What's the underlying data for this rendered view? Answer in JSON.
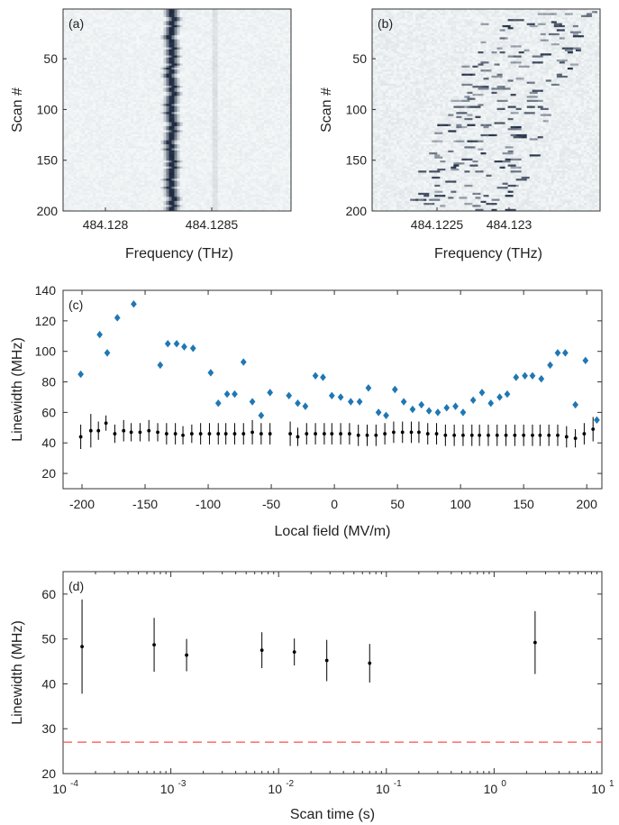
{
  "chart_data": [
    {
      "panel": "(a)",
      "type": "heatmap",
      "xlabel": "Frequency (THz)",
      "ylabel": "Scan #",
      "xticks": [
        "484.128",
        "484.1285"
      ],
      "yticks": [
        50,
        100,
        150,
        200
      ],
      "ylim": [
        1,
        200
      ],
      "colors": {
        "low": "#f4f8f9",
        "high": "#1d2a40"
      }
    },
    {
      "panel": "(b)",
      "type": "heatmap",
      "xlabel": "Frequency (THz)",
      "ylabel": "Scan #",
      "xticks": [
        "484.1225",
        "484.123"
      ],
      "yticks": [
        50,
        100,
        150,
        200
      ],
      "ylim": [
        1,
        200
      ],
      "colors": {
        "low": "#f4f8f9",
        "high": "#1d2a40"
      }
    },
    {
      "panel": "(c)",
      "type": "scatter",
      "xlabel": "Local field (MV/m)",
      "ylabel": "Linewidth (MHz)",
      "xlim": [
        -215,
        212
      ],
      "ylim": [
        10,
        140
      ],
      "xticks": [
        -200,
        -150,
        -100,
        -50,
        0,
        50,
        100,
        150,
        200
      ],
      "yticks": [
        20,
        40,
        60,
        80,
        100,
        120,
        140
      ],
      "series": [
        {
          "marker": "diamond",
          "color": "#1f77b4",
          "points": [
            [
              -201,
              85
            ],
            [
              -186,
              111
            ],
            [
              -180,
              99
            ],
            [
              -172,
              122
            ],
            [
              -159,
              131
            ],
            [
              -138,
              91
            ],
            [
              -132,
              105
            ],
            [
              -125,
              105
            ],
            [
              -119,
              103
            ],
            [
              -112,
              102
            ],
            [
              -98,
              86
            ],
            [
              -92,
              66
            ],
            [
              -85,
              72
            ],
            [
              -79,
              72
            ],
            [
              -72,
              93
            ],
            [
              -65,
              67
            ],
            [
              -58,
              58
            ],
            [
              -51,
              73
            ],
            [
              -36,
              71
            ],
            [
              -29,
              66
            ],
            [
              -23,
              64
            ],
            [
              -15,
              84
            ],
            [
              -9,
              83
            ],
            [
              -2,
              71
            ],
            [
              5,
              70
            ],
            [
              13,
              67
            ],
            [
              20,
              67
            ],
            [
              27,
              76
            ],
            [
              35,
              60
            ],
            [
              41,
              58
            ],
            [
              48,
              75
            ],
            [
              55,
              67
            ],
            [
              62,
              62
            ],
            [
              69,
              65
            ],
            [
              75,
              61
            ],
            [
              82,
              60
            ],
            [
              89,
              63
            ],
            [
              96,
              64
            ],
            [
              102,
              60
            ],
            [
              110,
              68
            ],
            [
              117,
              73
            ],
            [
              124,
              66
            ],
            [
              131,
              70
            ],
            [
              137,
              72
            ],
            [
              144,
              83
            ],
            [
              151,
              84
            ],
            [
              157,
              84
            ],
            [
              164,
              82
            ],
            [
              171,
              91
            ],
            [
              177,
              99
            ],
            [
              183,
              99
            ],
            [
              191,
              65
            ],
            [
              199,
              94
            ],
            [
              208,
              55
            ]
          ]
        },
        {
          "marker": "dot",
          "color": "#000000",
          "points": [
            [
              -201,
              44,
              8
            ],
            [
              -193,
              48,
              11
            ],
            [
              -187,
              48,
              6
            ],
            [
              -181,
              53,
              5
            ],
            [
              -174,
              46,
              6
            ],
            [
              -167,
              48,
              7
            ],
            [
              -161,
              47,
              6
            ],
            [
              -154,
              47,
              6
            ],
            [
              -147,
              48,
              7
            ],
            [
              -140,
              47,
              6
            ],
            [
              -133,
              46,
              7
            ],
            [
              -126,
              46,
              7
            ],
            [
              -120,
              45,
              6
            ],
            [
              -113,
              46,
              6
            ],
            [
              -106,
              46,
              7
            ],
            [
              -99,
              46,
              7
            ],
            [
              -92,
              46,
              7
            ],
            [
              -86,
              46,
              7
            ],
            [
              -79,
              46,
              7
            ],
            [
              -72,
              46,
              7
            ],
            [
              -65,
              47,
              8
            ],
            [
              -58,
              46,
              7
            ],
            [
              -51,
              46,
              7
            ],
            [
              -35,
              46,
              8
            ],
            [
              -29,
              44,
              6
            ],
            [
              -22,
              46,
              7
            ],
            [
              -15,
              46,
              7
            ],
            [
              -8,
              46,
              7
            ],
            [
              -2,
              46,
              7
            ],
            [
              5,
              46,
              7
            ],
            [
              12,
              46,
              7
            ],
            [
              19,
              45,
              7
            ],
            [
              26,
              45,
              7
            ],
            [
              33,
              45,
              7
            ],
            [
              40,
              46,
              7
            ],
            [
              47,
              47,
              7
            ],
            [
              54,
              47,
              7
            ],
            [
              61,
              47,
              7
            ],
            [
              67,
              47,
              7
            ],
            [
              74,
              46,
              7
            ],
            [
              81,
              46,
              7
            ],
            [
              88,
              45,
              7
            ],
            [
              95,
              45,
              7
            ],
            [
              102,
              45,
              7
            ],
            [
              109,
              45,
              7
            ],
            [
              115,
              45,
              7
            ],
            [
              122,
              45,
              7
            ],
            [
              129,
              45,
              7
            ],
            [
              136,
              45,
              7
            ],
            [
              143,
              45,
              7
            ],
            [
              150,
              45,
              7
            ],
            [
              157,
              45,
              7
            ],
            [
              163,
              45,
              7
            ],
            [
              170,
              45,
              7
            ],
            [
              177,
              45,
              7
            ],
            [
              184,
              44,
              7
            ],
            [
              191,
              43,
              6
            ],
            [
              198,
              46,
              7
            ],
            [
              205,
              49,
              8
            ]
          ]
        }
      ]
    },
    {
      "panel": "(d)",
      "type": "scatter",
      "xlabel": "Scan time (s)",
      "ylabel": "Linewidth (MHz)",
      "xscale": "log",
      "xlim": [
        0.0001,
        10
      ],
      "ylim": [
        20,
        65
      ],
      "xticks": [
        "10",
        "10",
        "10",
        "10",
        "10",
        "10"
      ],
      "xtick_exponents": [
        "-4",
        "-3",
        "-2",
        "-1",
        "0",
        "1"
      ],
      "yticks": [
        20,
        30,
        40,
        50,
        60
      ],
      "reference_line": {
        "y": 27,
        "color": "#ff4b4b",
        "style": "dashed"
      },
      "series": [
        {
          "marker": "dot",
          "color": "#000000",
          "points": [
            [
              0.00015,
              48.3,
              10.5
            ],
            [
              0.0007,
              48.7,
              6
            ],
            [
              0.0014,
              46.4,
              3.6
            ],
            [
              0.007,
              47.5,
              4
            ],
            [
              0.014,
              47.1,
              3
            ],
            [
              0.028,
              45.2,
              4.6
            ],
            [
              0.07,
              44.6,
              4.3
            ],
            [
              2.4,
              49.2,
              7
            ]
          ]
        }
      ]
    }
  ]
}
